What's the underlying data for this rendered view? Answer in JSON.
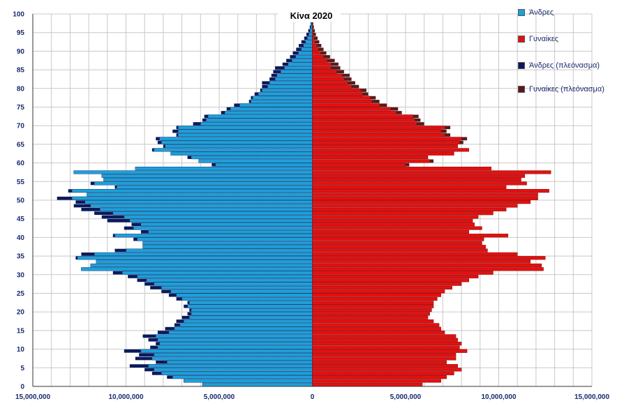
{
  "chart_data": {
    "type": "bar",
    "orientation": "horizontal",
    "title": "Κίνα 2020",
    "x_ticks": [
      "15,000,000",
      "10,000,000",
      "5,000,000",
      "0",
      "5,000,000",
      "10,000,000",
      "15,000,000"
    ],
    "x_range": [
      -15000000,
      15000000
    ],
    "y_ticks": [
      "0",
      "5",
      "10",
      "15",
      "20",
      "25",
      "30",
      "35",
      "40",
      "45",
      "50",
      "55",
      "60",
      "65",
      "70",
      "75",
      "80",
      "85",
      "90",
      "95",
      "100"
    ],
    "y_range": [
      0,
      100
    ],
    "grid": true,
    "legend_position": "right",
    "ages": [
      0,
      1,
      2,
      3,
      4,
      5,
      6,
      7,
      8,
      9,
      10,
      11,
      12,
      13,
      14,
      15,
      16,
      17,
      18,
      19,
      20,
      21,
      22,
      23,
      24,
      25,
      26,
      27,
      28,
      29,
      30,
      31,
      32,
      33,
      34,
      35,
      36,
      37,
      38,
      39,
      40,
      41,
      42,
      43,
      44,
      45,
      46,
      47,
      48,
      49,
      50,
      51,
      52,
      53,
      54,
      55,
      56,
      57,
      58,
      59,
      60,
      61,
      62,
      63,
      64,
      65,
      66,
      67,
      68,
      69,
      70,
      71,
      72,
      73,
      74,
      75,
      76,
      77,
      78,
      79,
      80,
      81,
      82,
      83,
      84,
      85,
      86,
      87,
      88,
      89,
      90,
      91,
      92,
      93,
      94,
      95,
      96,
      97,
      98
    ],
    "series": [
      {
        "name": "Άνδρες",
        "color": "#1e9fd8",
        "values": [
          -5900000,
          -6900000,
          -7500000,
          -8100000,
          -8500000,
          -8800000,
          -7800000,
          -8600000,
          -8500000,
          -9200000,
          -8300000,
          -8200000,
          -8300000,
          -8400000,
          -7700000,
          -7400000,
          -7100000,
          -6900000,
          -6600000,
          -6500000,
          -6500000,
          -6700000,
          -6600000,
          -7000000,
          -7300000,
          -7600000,
          -8100000,
          -8500000,
          -8900000,
          -9400000,
          -10200000,
          -12400000,
          -11900000,
          -11600000,
          -12600000,
          -11700000,
          -10000000,
          -9100000,
          -9100000,
          -9400000,
          -10600000,
          -8800000,
          -9600000,
          -9200000,
          -9800000,
          -10100000,
          -10700000,
          -11400000,
          -11900000,
          -12200000,
          -12900000,
          -12100000,
          -12900000,
          -10500000,
          -11700000,
          -11200000,
          -11300000,
          -12800000,
          -9500000,
          -5200000,
          -6100000,
          -6500000,
          -7600000,
          -8500000,
          -7900000,
          -8100000,
          -8200000,
          -7200000,
          -7200000,
          -7200000,
          -6000000,
          -5700000,
          -5600000,
          -4700000,
          -4400000,
          -3900000,
          -3300000,
          -3200000,
          -2900000,
          -2700000,
          -2400000,
          -2300000,
          -2000000,
          -1900000,
          -1700000,
          -1500000,
          -1300000,
          -1100000,
          -900000,
          -750000,
          -600000,
          -480000,
          -370000,
          -270000,
          -190000,
          -130000,
          -80000,
          -50000,
          -25000
        ]
      },
      {
        "name": "Γυναίκες",
        "color": "#e31010",
        "values": [
          5900000,
          6900000,
          7200000,
          7600000,
          8000000,
          7800000,
          7200000,
          7700000,
          7700000,
          8300000,
          7900000,
          8000000,
          7800000,
          7700000,
          7100000,
          6900000,
          6800000,
          6500000,
          6200000,
          6300000,
          6400000,
          6500000,
          6500000,
          6700000,
          6900000,
          7100000,
          7500000,
          8000000,
          8400000,
          8900000,
          9700000,
          12400000,
          12300000,
          11700000,
          12500000,
          11000000,
          9400000,
          9300000,
          9100000,
          9200000,
          10500000,
          8400000,
          9100000,
          8700000,
          8600000,
          8900000,
          9700000,
          10400000,
          11000000,
          11700000,
          12100000,
          12100000,
          12700000,
          10400000,
          11500000,
          11200000,
          11400000,
          12800000,
          9600000,
          5000000,
          6300000,
          6200000,
          7600000,
          8400000,
          7800000,
          7900000,
          8000000,
          7100000,
          6900000,
          7100000,
          5600000,
          5500000,
          5400000,
          4500000,
          4200000,
          3600000,
          3200000,
          3100000,
          2700000,
          2600000,
          2100000,
          1900000,
          1700000,
          1600000,
          1300000,
          1000000,
          1000000,
          800000,
          600000,
          450000,
          330000,
          230000,
          150000,
          100000,
          60000,
          40000,
          20000,
          10000,
          5000
        ]
      },
      {
        "name": "Άνδρες (πλεόνασμα)",
        "color": "#0a1a5c",
        "values": [
          0,
          0,
          300000,
          500000,
          500000,
          1000000,
          600000,
          900000,
          800000,
          900000,
          400000,
          200000,
          500000,
          700000,
          600000,
          500000,
          300000,
          400000,
          400000,
          200000,
          100000,
          200000,
          100000,
          300000,
          400000,
          500000,
          600000,
          500000,
          500000,
          500000,
          500000,
          0,
          0,
          0,
          100000,
          700000,
          600000,
          0,
          0,
          200000,
          100000,
          400000,
          500000,
          500000,
          1200000,
          1200000,
          1000000,
          1000000,
          900000,
          500000,
          800000,
          0,
          200000,
          100000,
          200000,
          0,
          0,
          0,
          0,
          200000,
          0,
          200000,
          0,
          100000,
          100000,
          200000,
          200000,
          100000,
          300000,
          100000,
          400000,
          200000,
          200000,
          200000,
          200000,
          300000,
          100000,
          100000,
          200000,
          100000,
          300000,
          400000,
          300000,
          300000,
          400000,
          500000,
          300000,
          300000,
          300000,
          300000,
          270000,
          250000,
          220000,
          170000,
          130000,
          90000,
          60000,
          40000,
          20000
        ]
      },
      {
        "name": "Γυναίκες (πλεόνασμα)",
        "color": "#5a1a1a",
        "values": [
          0,
          0,
          0,
          0,
          0,
          0,
          0,
          0,
          0,
          0,
          0,
          0,
          0,
          0,
          0,
          0,
          0,
          0,
          0,
          0,
          0,
          0,
          0,
          0,
          0,
          0,
          0,
          0,
          0,
          0,
          0,
          0,
          0,
          0,
          0,
          0,
          0,
          0,
          0,
          0,
          0,
          0,
          0,
          0,
          0,
          0,
          0,
          0,
          0,
          0,
          0,
          0,
          0,
          0,
          0,
          0,
          0,
          0,
          0,
          200000,
          200000,
          0,
          0,
          0,
          0,
          200000,
          300000,
          300000,
          300000,
          300000,
          400000,
          300000,
          300000,
          300000,
          400000,
          400000,
          400000,
          300000,
          300000,
          300000,
          400000,
          400000,
          400000,
          400000,
          400000,
          500000,
          400000,
          400000,
          350000,
          300000,
          270000,
          250000,
          220000,
          180000,
          130000,
          90000,
          60000,
          40000,
          20000
        ]
      }
    ]
  }
}
